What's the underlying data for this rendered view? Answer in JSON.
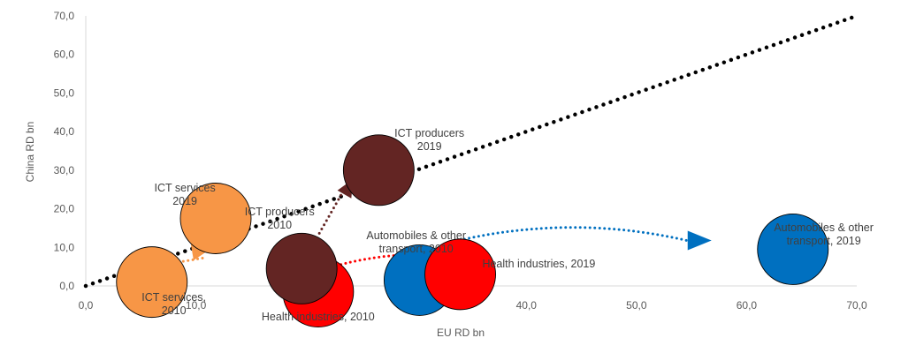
{
  "chart_data": {
    "type": "scatter",
    "subtype": "bubble",
    "xlabel": "EU RD bn",
    "ylabel": "China RD bn",
    "xlim": [
      0,
      70
    ],
    "ylim": [
      0,
      70
    ],
    "x_ticks": [
      "0,0",
      "10,0",
      "20,0",
      "30,0",
      "40,0",
      "50,0",
      "60,0",
      "70,0"
    ],
    "y_ticks": [
      "0,0",
      "10,0",
      "20,0",
      "30,0",
      "40,0",
      "50,0",
      "60,0",
      "70,0"
    ],
    "grid": false,
    "diagonal_line": {
      "x": [
        0,
        70
      ],
      "y": [
        0,
        70
      ],
      "style": "dotted",
      "color": "#000000"
    },
    "colors": {
      "ict_services": "#F79646",
      "ict_producers": "#632523",
      "health": "#FF0000",
      "automobiles": "#0070C0",
      "axis": "#d9d9d9",
      "text": "#595959",
      "label": "#404040"
    },
    "series": [
      {
        "key": "ict_services",
        "points": [
          {
            "x": 6.0,
            "y": 1.0,
            "label_lines": [
              "ICT services,",
              "2010"
            ]
          },
          {
            "x": 11.8,
            "y": 17.5,
            "label_lines": [
              "ICT services",
              "2019"
            ]
          }
        ]
      },
      {
        "key": "ict_producers",
        "points": [
          {
            "x": 19.6,
            "y": 4.5,
            "label_lines": [
              "ICT producers",
              "2010"
            ]
          },
          {
            "x": 26.6,
            "y": 30.0,
            "label_lines": [
              "ICT producers",
              "2019"
            ]
          }
        ]
      },
      {
        "key": "health",
        "points": [
          {
            "x": 21.1,
            "y": -1.5,
            "label_lines": [
              "Health industries, 2010"
            ]
          },
          {
            "x": 34.0,
            "y": 3.0,
            "label_lines": [
              "Health industries, 2019"
            ]
          }
        ]
      },
      {
        "key": "automobiles",
        "points": [
          {
            "x": 30.3,
            "y": 1.5,
            "label_lines": [
              "Automobiles & other",
              "transport, 2010"
            ]
          },
          {
            "x": 64.2,
            "y": 9.5,
            "label_lines": [
              "Automobiles & other",
              "transport, 2019"
            ]
          }
        ]
      }
    ]
  }
}
